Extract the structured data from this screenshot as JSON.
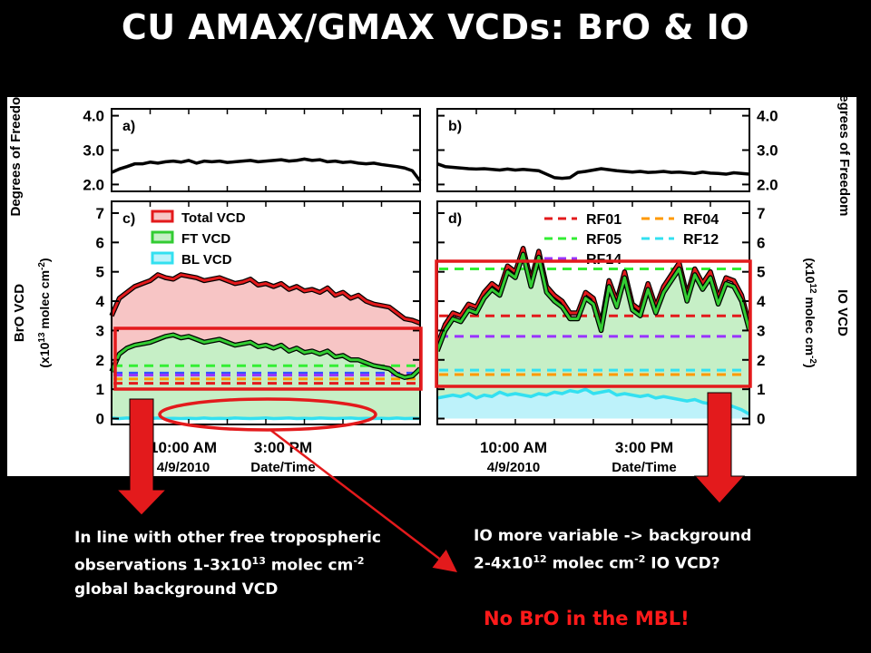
{
  "slide": {
    "title": "CU AMAX/GMAX VCDs: BrO & IO",
    "note_left": {
      "line1": "In line with other free tropospheric",
      "line2_pre": "observations 1-3x10",
      "line2_exp": "13",
      "line2_mid": " molec cm",
      "line2_exp2": "-2",
      "line3": "global background VCD"
    },
    "note_right": {
      "line1": "IO more variable -> background",
      "line2_pre": "2-4x10",
      "line2_exp": "12",
      "line2_mid": " molec cm",
      "line2_exp2": "-2",
      "line2_post": " IO VCD?"
    },
    "note_red": "No BrO in the MBL!"
  },
  "chart_data": [
    {
      "panel": "a)",
      "type": "line",
      "ylabel": "Degrees of Freedom",
      "ylim": [
        1.8,
        4.2
      ],
      "yticks": [
        "4.0",
        "3.0",
        "2.0"
      ],
      "x": [
        0,
        1,
        2,
        3,
        4,
        5,
        6,
        7,
        8,
        9,
        10,
        11,
        12,
        13,
        14,
        15,
        16,
        17,
        18,
        19,
        20,
        21,
        22,
        23,
        24,
        25,
        26,
        27,
        28,
        29,
        30,
        31,
        32,
        33,
        34,
        35,
        36,
        37,
        38,
        39,
        40
      ],
      "series": [
        {
          "color": "#000000",
          "values": [
            2.35,
            2.45,
            2.52,
            2.6,
            2.6,
            2.65,
            2.62,
            2.66,
            2.68,
            2.65,
            2.7,
            2.62,
            2.68,
            2.66,
            2.68,
            2.64,
            2.66,
            2.68,
            2.7,
            2.66,
            2.68,
            2.7,
            2.72,
            2.68,
            2.7,
            2.74,
            2.7,
            2.72,
            2.66,
            2.68,
            2.64,
            2.66,
            2.62,
            2.6,
            2.62,
            2.58,
            2.55,
            2.52,
            2.48,
            2.4,
            2.1
          ]
        }
      ]
    },
    {
      "panel": "b)",
      "type": "line",
      "ylabel": "Degrees of Freedom",
      "ylim": [
        1.8,
        4.2
      ],
      "yticks": [
        "4.0",
        "3.0",
        "2.0"
      ],
      "x": [
        0,
        1,
        2,
        3,
        4,
        5,
        6,
        7,
        8,
        9,
        10,
        11,
        12,
        13,
        14,
        15,
        16,
        17,
        18,
        19,
        20,
        21,
        22,
        23,
        24,
        25,
        26,
        27,
        28,
        29,
        30,
        31,
        32,
        33,
        34,
        35,
        36,
        37,
        38,
        39,
        40
      ],
      "series": [
        {
          "color": "#000000",
          "values": [
            2.6,
            2.52,
            2.5,
            2.48,
            2.46,
            2.45,
            2.46,
            2.44,
            2.42,
            2.45,
            2.42,
            2.44,
            2.42,
            2.4,
            2.3,
            2.2,
            2.18,
            2.2,
            2.35,
            2.38,
            2.42,
            2.46,
            2.43,
            2.4,
            2.38,
            2.36,
            2.38,
            2.35,
            2.36,
            2.38,
            2.35,
            2.36,
            2.34,
            2.32,
            2.36,
            2.33,
            2.32,
            2.3,
            2.34,
            2.32,
            2.3
          ]
        }
      ]
    },
    {
      "panel": "c)",
      "type": "area",
      "ylabel": "BrO VCD",
      "ylabel2": "(x10",
      "ylabel2_exp": "13",
      "ylabel2_post": " molec cm",
      "ylabel2_exp2": "-2",
      "ylabel2_end": ")",
      "xlabel": "Date/Time",
      "xticks": [
        "10:00 AM",
        "3:00 PM"
      ],
      "xdate": "4/9/2010",
      "ylim": [
        -0.2,
        7.4
      ],
      "yticks": [
        "7",
        "6",
        "5",
        "4",
        "3",
        "2",
        "1",
        "0"
      ],
      "legend": [
        "Total VCD",
        "FT VCD",
        "BL VCD"
      ],
      "x": [
        0,
        1,
        2,
        3,
        4,
        5,
        6,
        7,
        8,
        9,
        10,
        11,
        12,
        13,
        14,
        15,
        16,
        17,
        18,
        19,
        20,
        21,
        22,
        23,
        24,
        25,
        26,
        27,
        28,
        29,
        30,
        31,
        32,
        33,
        34,
        35,
        36,
        37,
        38,
        39,
        40
      ],
      "series": [
        {
          "name": "Total VCD",
          "color": "#e31a1c",
          "values": [
            3.5,
            4.1,
            4.3,
            4.5,
            4.6,
            4.7,
            4.9,
            4.8,
            4.75,
            4.9,
            4.85,
            4.8,
            4.7,
            4.75,
            4.8,
            4.7,
            4.6,
            4.65,
            4.75,
            4.55,
            4.6,
            4.5,
            4.6,
            4.4,
            4.5,
            4.35,
            4.4,
            4.3,
            4.45,
            4.2,
            4.3,
            4.1,
            4.2,
            4.0,
            3.9,
            3.85,
            3.8,
            3.6,
            3.4,
            3.35,
            3.25
          ]
        },
        {
          "name": "FT VCD",
          "color": "#33cc33",
          "values": [
            1.6,
            2.2,
            2.4,
            2.5,
            2.55,
            2.6,
            2.7,
            2.8,
            2.85,
            2.75,
            2.8,
            2.7,
            2.6,
            2.65,
            2.7,
            2.6,
            2.5,
            2.55,
            2.6,
            2.45,
            2.5,
            2.4,
            2.5,
            2.3,
            2.4,
            2.25,
            2.3,
            2.2,
            2.3,
            2.1,
            2.15,
            2.0,
            2.0,
            1.9,
            1.8,
            1.75,
            1.7,
            1.5,
            1.4,
            1.45,
            1.7
          ]
        },
        {
          "name": "BL VCD",
          "color": "#33e0f0",
          "values": [
            0.02,
            0.0,
            0.02,
            0.0,
            0.01,
            0.0,
            0.02,
            0.0,
            0.01,
            0.0,
            0.01,
            0.0,
            0.02,
            0.0,
            0.01,
            0.0,
            0.02,
            0.01,
            0.0,
            0.01,
            0.02,
            0.0,
            0.01,
            0.02,
            0.0,
            0.01,
            0.0,
            0.02,
            0.01,
            0.0,
            0.01,
            0.02,
            0.0,
            0.01,
            0.0,
            0.01,
            0.0,
            0.02,
            0.0,
            0.01,
            0.0
          ]
        }
      ],
      "dashed_levels": [
        {
          "color": "#33ee33",
          "value": 1.8
        },
        {
          "color": "#3355ff",
          "value": 1.55
        },
        {
          "color": "#9933ff",
          "value": 1.48
        },
        {
          "color": "#ff9900",
          "value": 1.35
        },
        {
          "color": "#e31a1c",
          "value": 1.2
        }
      ]
    },
    {
      "panel": "d)",
      "type": "area",
      "ylabel": "IO VCD",
      "ylabel2": "(x10",
      "ylabel2_exp": "12",
      "ylabel2_post": " molec cm",
      "ylabel2_exp2": "-2",
      "ylabel2_end": ")",
      "xlabel": "Date/Time",
      "xticks": [
        "10:00 AM",
        "3:00 PM"
      ],
      "xdate": "4/9/2010",
      "ylim": [
        -0.2,
        7.4
      ],
      "yticks": [
        "7",
        "6",
        "5",
        "4",
        "3",
        "2",
        "1",
        "0"
      ],
      "legend": [
        "RF01",
        "RF04",
        "RF05",
        "RF12",
        "RF14"
      ],
      "x": [
        0,
        1,
        2,
        3,
        4,
        5,
        6,
        7,
        8,
        9,
        10,
        11,
        12,
        13,
        14,
        15,
        16,
        17,
        18,
        19,
        20,
        21,
        22,
        23,
        24,
        25,
        26,
        27,
        28,
        29,
        30,
        31,
        32,
        33,
        34,
        35,
        36,
        37,
        38,
        39,
        40
      ],
      "series": [
        {
          "name": "Total VCD",
          "color": "#e31a1c",
          "values": [
            2.5,
            3.2,
            3.6,
            3.5,
            3.9,
            3.8,
            4.3,
            4.6,
            4.4,
            5.2,
            5.0,
            5.8,
            4.7,
            5.7,
            4.5,
            4.2,
            4.0,
            3.6,
            3.6,
            4.3,
            4.1,
            3.2,
            4.7,
            4.0,
            5.0,
            3.9,
            3.7,
            4.6,
            3.8,
            4.5,
            4.9,
            5.3,
            4.2,
            5.1,
            4.6,
            5.0,
            4.1,
            4.8,
            4.7,
            4.2,
            3.2
          ]
        },
        {
          "name": "FT VCD",
          "color": "#33cc33",
          "values": [
            2.3,
            3.0,
            3.4,
            3.3,
            3.7,
            3.6,
            4.1,
            4.4,
            4.2,
            5.0,
            4.8,
            5.6,
            4.5,
            5.5,
            4.3,
            4.0,
            3.8,
            3.4,
            3.4,
            4.1,
            3.9,
            3.0,
            4.5,
            3.8,
            4.8,
            3.7,
            3.5,
            4.4,
            3.6,
            4.3,
            4.7,
            5.1,
            4.0,
            4.9,
            4.4,
            4.8,
            3.9,
            4.6,
            4.5,
            4.0,
            3.0
          ]
        },
        {
          "name": "BL VCD",
          "color": "#33e0f0",
          "values": [
            0.7,
            0.75,
            0.8,
            0.75,
            0.85,
            0.7,
            0.8,
            0.75,
            0.9,
            0.8,
            0.85,
            0.8,
            0.75,
            0.85,
            0.8,
            0.9,
            0.85,
            0.95,
            0.9,
            1.0,
            0.85,
            0.9,
            0.95,
            0.8,
            0.85,
            0.8,
            0.75,
            0.8,
            0.7,
            0.75,
            0.7,
            0.65,
            0.6,
            0.65,
            0.55,
            0.5,
            0.45,
            0.5,
            0.4,
            0.3,
            0.15
          ]
        }
      ],
      "dashed_levels": [
        {
          "color": "#33ee33",
          "value": 5.1
        },
        {
          "color": "#e31a1c",
          "value": 3.5
        },
        {
          "color": "#9933ff",
          "value": 2.8
        },
        {
          "color": "#33e0f0",
          "value": 1.65
        },
        {
          "color": "#ff9900",
          "value": 1.5
        }
      ]
    }
  ]
}
